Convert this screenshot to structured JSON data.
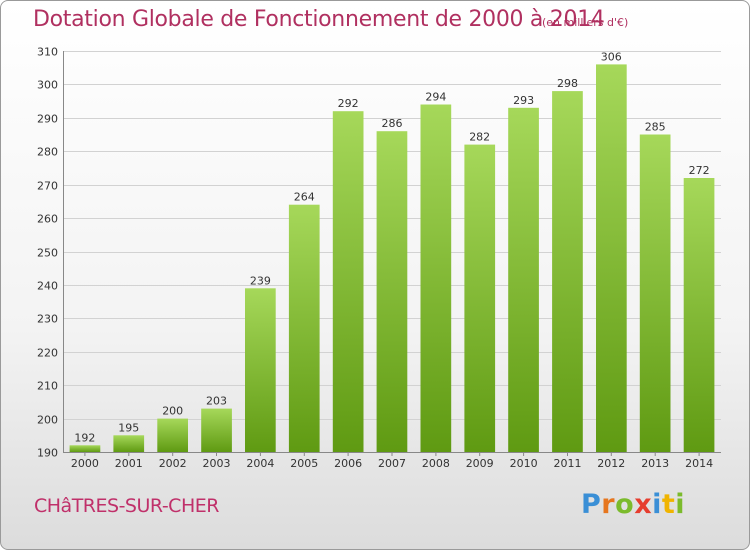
{
  "header": {
    "title": "Dotation Globale de Fonctionnement de 2000 à 2014",
    "unit": "(en milliers d'€)"
  },
  "footer": {
    "town": "CHâTRES-SUR-CHER",
    "logo": "Proxiti",
    "logo_colors": [
      "#3a8fd6",
      "#e6761e",
      "#7bbb2c",
      "#e63d2e",
      "#3a8fd6",
      "#f0b400",
      "#7bbb2c"
    ]
  },
  "colors": {
    "bar_light": "#a6d85a",
    "bar_dark": "#5f9a12",
    "grid": "#d2d2d2",
    "axis_text": "#333333",
    "title": "#b03060"
  },
  "chart_data": {
    "type": "bar",
    "title": "Dotation Globale de Fonctionnement de 2000 à 2014",
    "subtitle": "(en milliers d'€)",
    "xlabel": "",
    "ylabel": "",
    "categories": [
      "2000",
      "2001",
      "2002",
      "2003",
      "2004",
      "2005",
      "2006",
      "2007",
      "2008",
      "2009",
      "2010",
      "2011",
      "2012",
      "2013",
      "2014"
    ],
    "values": [
      192,
      195,
      200,
      203,
      239,
      264,
      292,
      286,
      294,
      282,
      293,
      298,
      306,
      285,
      272
    ],
    "data_labels": [
      "192",
      "195",
      "200",
      "203",
      "239",
      "264",
      "292",
      "286",
      "294",
      "282",
      "293",
      "298",
      "306",
      "285",
      "272"
    ],
    "ylim": [
      190,
      310
    ],
    "yticks": [
      190,
      200,
      210,
      220,
      230,
      240,
      250,
      260,
      270,
      280,
      290,
      300,
      310
    ],
    "ytick_labels": [
      "190",
      "200",
      "210",
      "220",
      "230",
      "240",
      "250",
      "260",
      "270",
      "280",
      "290",
      "300",
      "310"
    ],
    "grid": true,
    "legend": "none"
  }
}
